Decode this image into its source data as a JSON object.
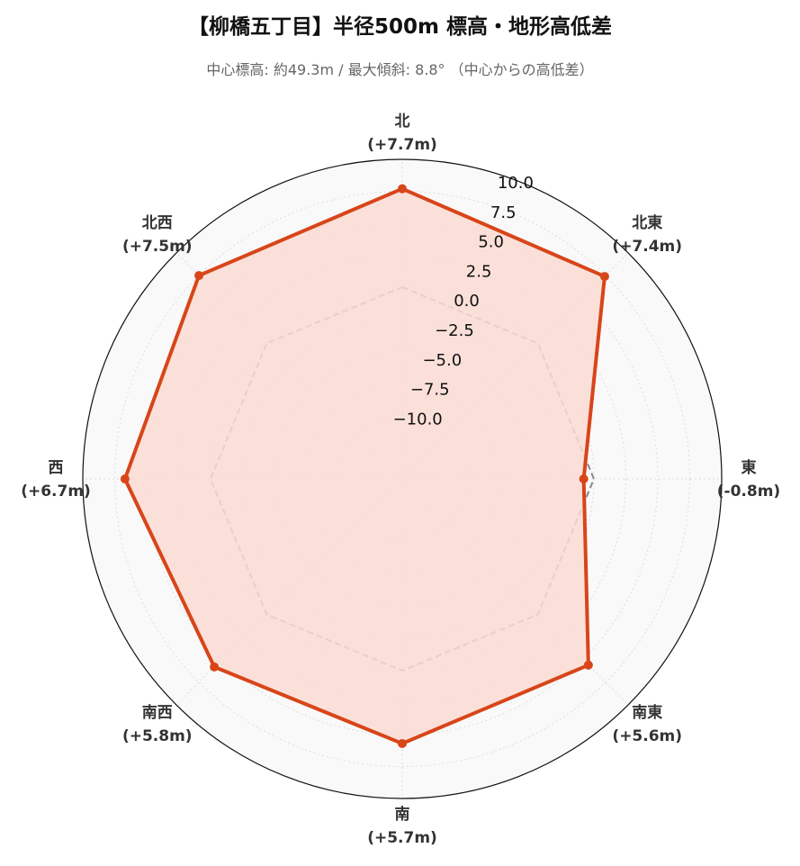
{
  "chart_data": {
    "type": "radar",
    "title": "【柳橋五丁目】半径500m 標高・地形高低差",
    "subtitle": "中心標高: 約49.3m / 最大傾斜: 8.8° （中心からの高低差）",
    "categories": [
      "北",
      "北東",
      "東",
      "南東",
      "南",
      "南西",
      "西",
      "北西"
    ],
    "category_labels": [
      "(+7.7m)",
      "(+7.4m)",
      "(-0.8m)",
      "(+5.6m)",
      "(+5.7m)",
      "(+5.8m)",
      "(+6.7m)",
      "(+7.5m)"
    ],
    "values": [
      7.7,
      7.4,
      -0.8,
      5.6,
      5.7,
      5.8,
      6.7,
      7.5
    ],
    "reference_values": [
      0,
      0,
      0,
      0,
      0,
      0,
      0,
      0
    ],
    "rlim": [
      -15,
      10
    ],
    "rticks": [
      "10.0",
      "7.5",
      "5.0",
      "2.5",
      "0.0",
      "−2.5",
      "−5.0",
      "−7.5",
      "−10.0"
    ],
    "rtick_values": [
      10.0,
      7.5,
      5.0,
      2.5,
      0.0,
      -2.5,
      -5.0,
      -7.5,
      -10.0
    ],
    "grid": true,
    "colors": {
      "series_line": "#d84519",
      "series_fill": "#fcdcd4",
      "reference_line": "#888888",
      "background": "#f9f9f9",
      "grid": "#dddddd"
    }
  }
}
